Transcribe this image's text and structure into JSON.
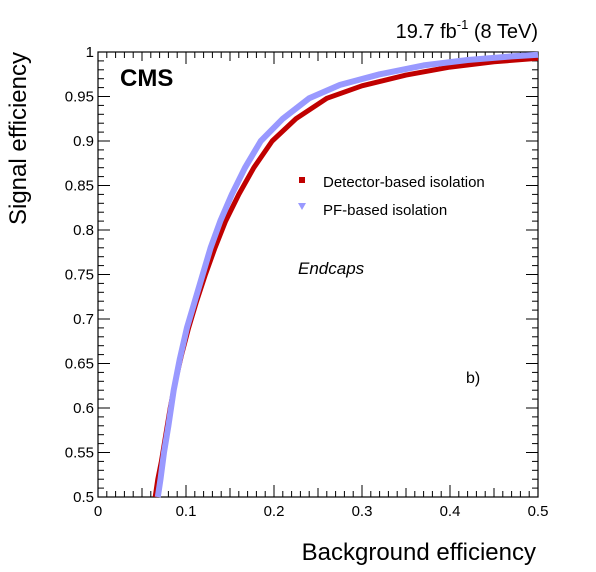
{
  "chart_data": {
    "type": "line",
    "title": "",
    "experiment_label": "CMS",
    "lumi_label": {
      "value": "19.7 fb",
      "sup": "-1",
      "suffix": " (8 TeV)"
    },
    "region_label": "Endcaps",
    "panel_label": "b)",
    "xlabel": "Background efficiency",
    "ylabel": "Signal efficiency",
    "xlim": [
      0,
      0.5
    ],
    "ylim": [
      0.5,
      1.0
    ],
    "x_ticks": [
      0,
      0.1,
      0.2,
      0.3,
      0.4,
      0.5
    ],
    "x_tick_labels": [
      "0",
      "0.1",
      "0.2",
      "0.3",
      "0.4",
      "0.5"
    ],
    "y_ticks": [
      0.5,
      0.55,
      0.6,
      0.65,
      0.7,
      0.75,
      0.8,
      0.85,
      0.9,
      0.95,
      1.0
    ],
    "y_tick_labels": [
      "0.5",
      "0.55",
      "0.6",
      "0.65",
      "0.7",
      "0.75",
      "0.8",
      "0.85",
      "0.9",
      "0.95",
      "1"
    ],
    "grid": false,
    "legend_position": "right-middle",
    "series": [
      {
        "name": "Detector-based isolation",
        "color": "#c00000",
        "marker": "square",
        "points": [
          [
            0.065,
            0.5
          ],
          [
            0.068,
            0.52
          ],
          [
            0.072,
            0.54
          ],
          [
            0.077,
            0.57
          ],
          [
            0.082,
            0.6
          ],
          [
            0.088,
            0.63
          ],
          [
            0.095,
            0.66
          ],
          [
            0.103,
            0.69
          ],
          [
            0.112,
            0.72
          ],
          [
            0.122,
            0.75
          ],
          [
            0.133,
            0.78
          ],
          [
            0.145,
            0.81
          ],
          [
            0.16,
            0.84
          ],
          [
            0.177,
            0.87
          ],
          [
            0.198,
            0.9
          ],
          [
            0.225,
            0.925
          ],
          [
            0.26,
            0.948
          ],
          [
            0.3,
            0.962
          ],
          [
            0.35,
            0.974
          ],
          [
            0.4,
            0.983
          ],
          [
            0.45,
            0.989
          ],
          [
            0.5,
            0.993
          ]
        ]
      },
      {
        "name": "PF-based isolation",
        "color": "#9999ff",
        "marker": "triangle-down",
        "points": [
          [
            0.068,
            0.5
          ],
          [
            0.071,
            0.52
          ],
          [
            0.075,
            0.55
          ],
          [
            0.08,
            0.58
          ],
          [
            0.086,
            0.62
          ],
          [
            0.093,
            0.655
          ],
          [
            0.101,
            0.69
          ],
          [
            0.11,
            0.72
          ],
          [
            0.119,
            0.75
          ],
          [
            0.128,
            0.78
          ],
          [
            0.139,
            0.81
          ],
          [
            0.152,
            0.84
          ],
          [
            0.167,
            0.87
          ],
          [
            0.185,
            0.9
          ],
          [
            0.21,
            0.925
          ],
          [
            0.24,
            0.948
          ],
          [
            0.275,
            0.963
          ],
          [
            0.32,
            0.975
          ],
          [
            0.37,
            0.985
          ],
          [
            0.42,
            0.991
          ],
          [
            0.47,
            0.995
          ],
          [
            0.5,
            0.997
          ]
        ]
      }
    ]
  }
}
